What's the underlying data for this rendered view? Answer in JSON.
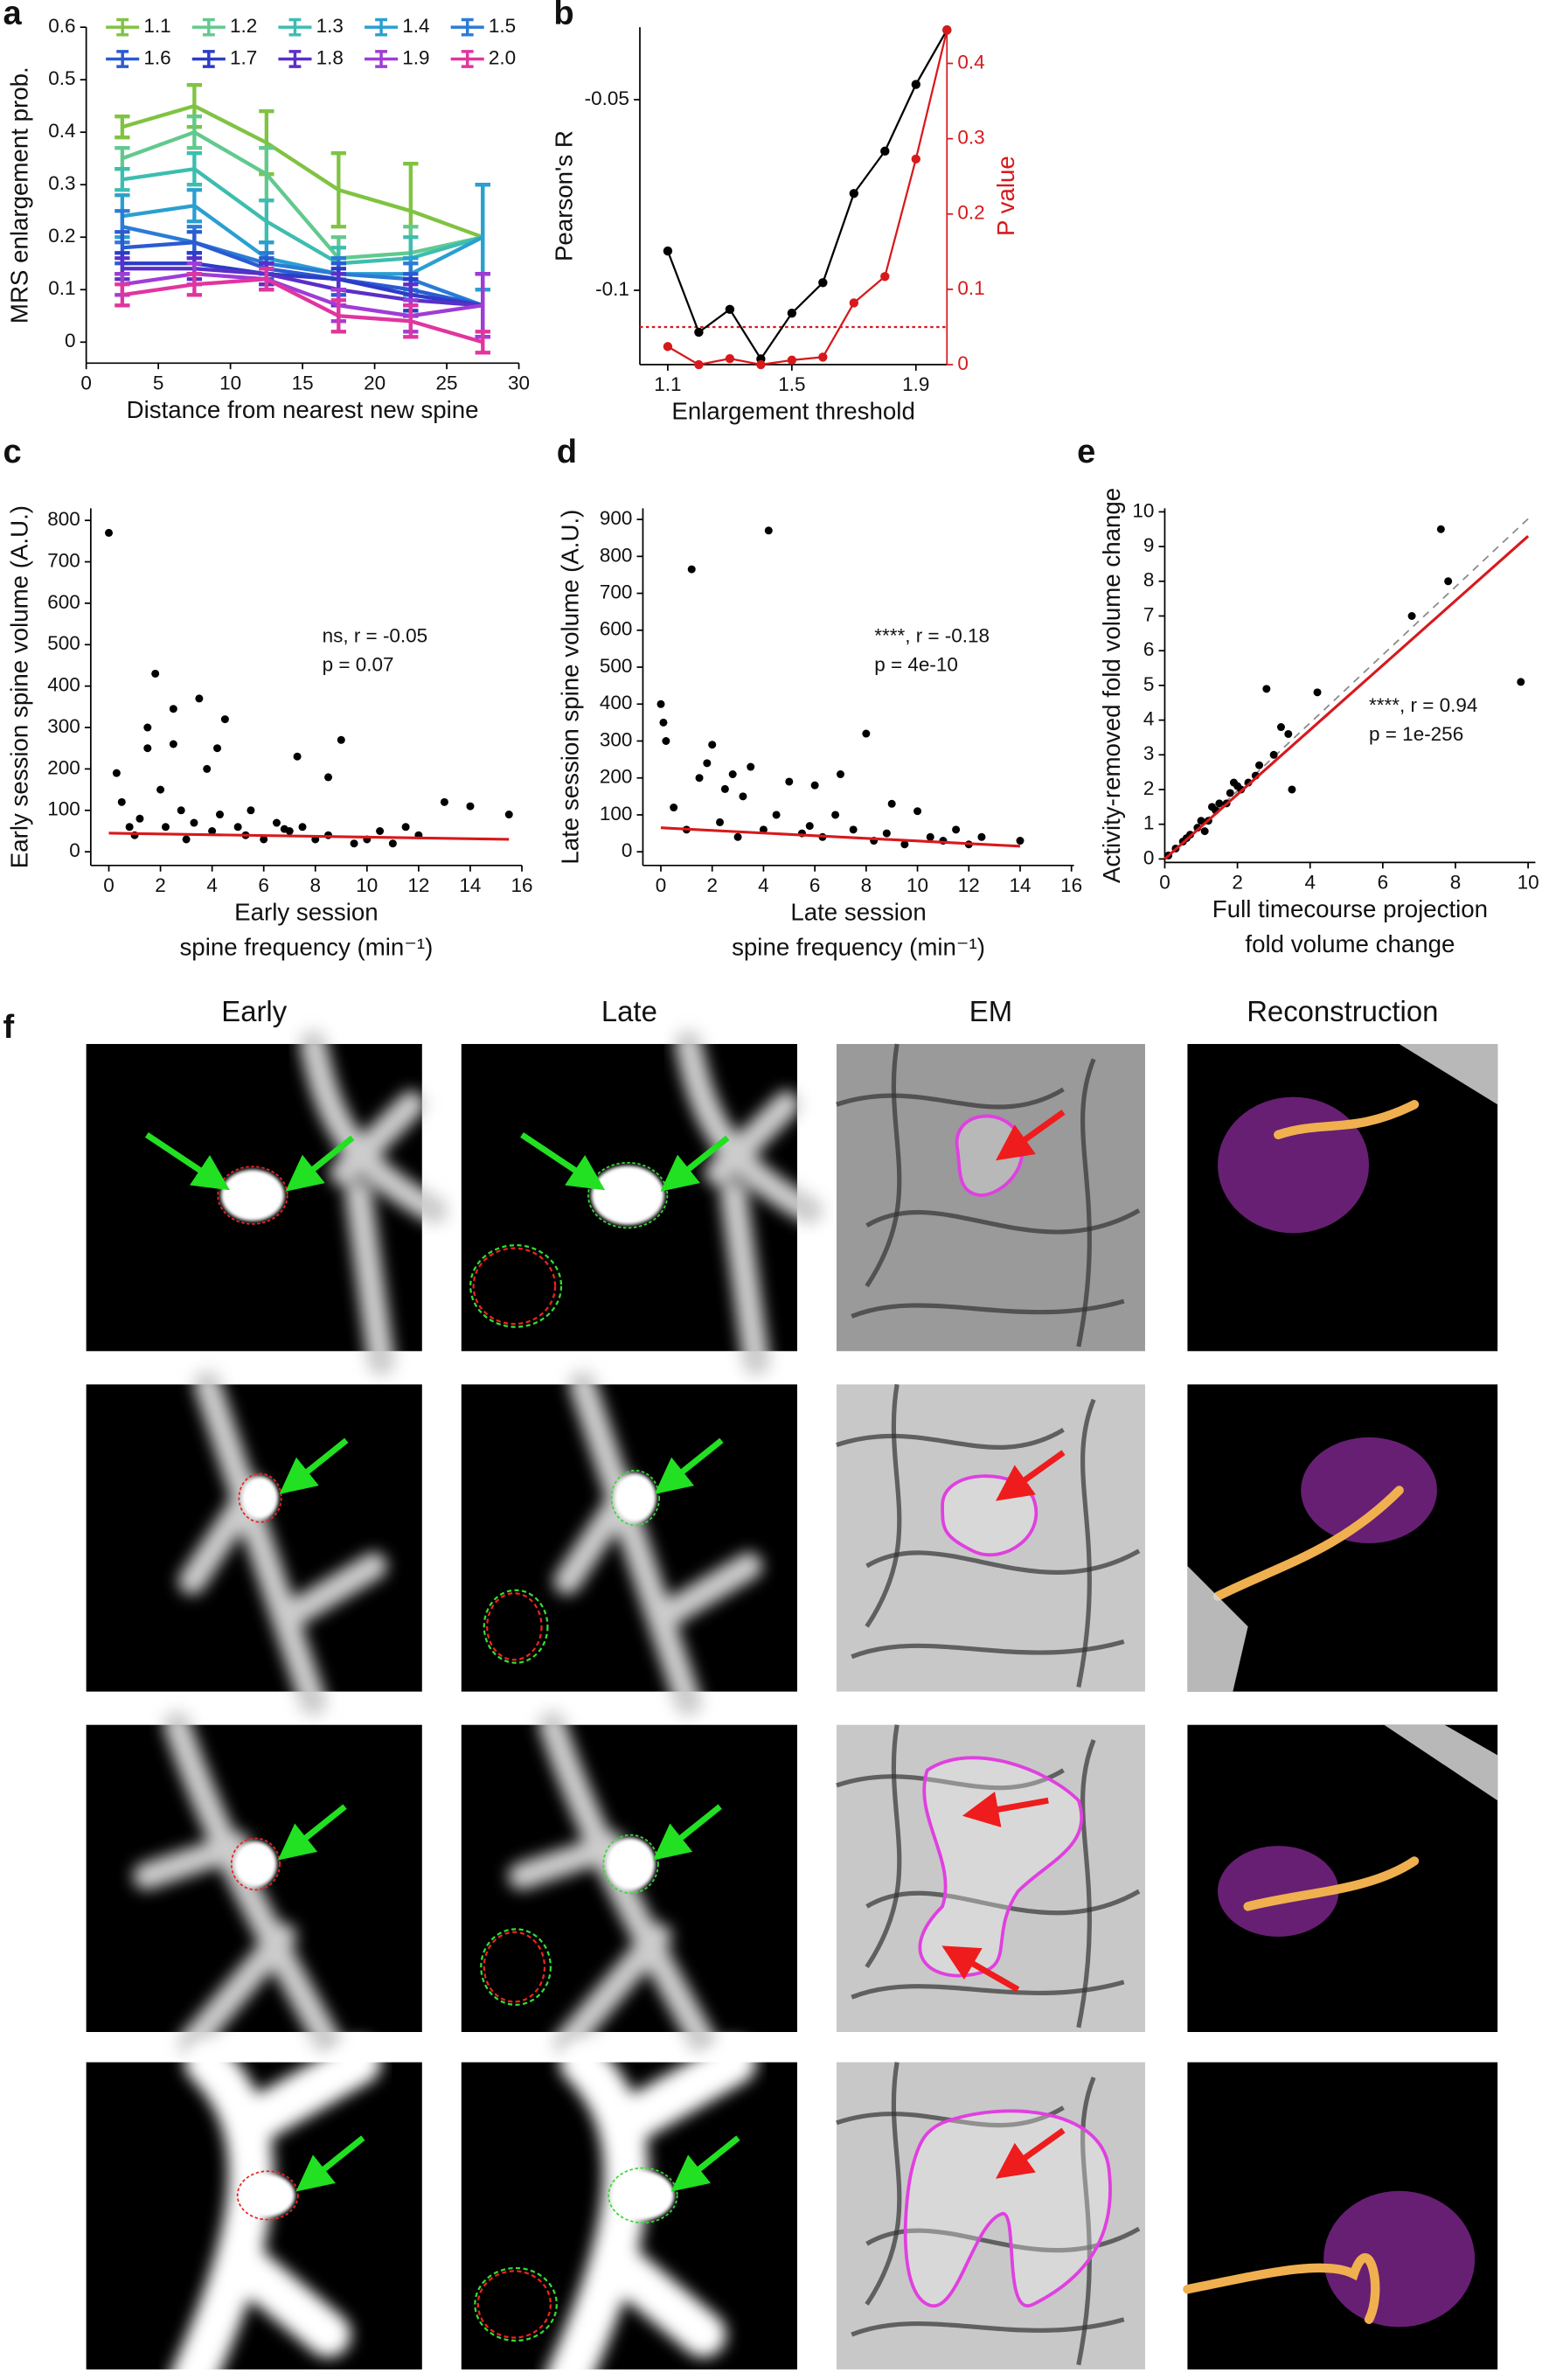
{
  "chart_data": [
    {
      "type": "line",
      "panel": "a",
      "xlabel": "Distance from nearest new spine",
      "ylabel": "MRS enlargement prob.",
      "x": [
        2.5,
        7.5,
        12.5,
        17.5,
        22.5,
        27.5
      ],
      "xlim": [
        0,
        30
      ],
      "xticks": [
        0,
        5,
        10,
        15,
        20,
        25,
        30
      ],
      "ylim": [
        -0.04,
        0.6
      ],
      "yticks": [
        0,
        0.1,
        0.2,
        0.3,
        0.4,
        0.5,
        0.6
      ],
      "series": [
        {
          "name": "1.1",
          "color": "#80c342",
          "values": [
            0.41,
            0.45,
            0.38,
            0.29,
            0.25,
            0.2
          ],
          "errors": [
            0.02,
            0.04,
            0.06,
            0.07,
            0.09,
            0.1
          ]
        },
        {
          "name": "1.2",
          "color": "#62c98e",
          "values": [
            0.35,
            0.4,
            0.32,
            0.16,
            0.17,
            0.2
          ],
          "errors": [
            0.02,
            0.03,
            0.05,
            0.04,
            0.05,
            0.1
          ]
        },
        {
          "name": "1.3",
          "color": "#3dbdb0",
          "values": [
            0.31,
            0.33,
            0.23,
            0.15,
            0.16,
            0.2
          ],
          "errors": [
            0.02,
            0.03,
            0.04,
            0.03,
            0.04,
            0.1
          ]
        },
        {
          "name": "1.4",
          "color": "#2a9fd0",
          "values": [
            0.24,
            0.26,
            0.16,
            0.13,
            0.13,
            0.2
          ],
          "errors": [
            0.04,
            0.03,
            0.03,
            0.03,
            0.03,
            0.1
          ]
        },
        {
          "name": "1.5",
          "color": "#2b7bd6",
          "values": [
            0.22,
            0.19,
            0.15,
            0.13,
            0.12,
            0.07
          ],
          "errors": [
            0.03,
            0.03,
            0.02,
            0.03,
            0.03,
            0.06
          ]
        },
        {
          "name": "1.6",
          "color": "#2a5bd0",
          "values": [
            0.18,
            0.19,
            0.14,
            0.12,
            0.1,
            0.07
          ],
          "errors": [
            0.03,
            0.02,
            0.02,
            0.03,
            0.03,
            0.06
          ]
        },
        {
          "name": "1.7",
          "color": "#2c3cc8",
          "values": [
            0.15,
            0.15,
            0.13,
            0.12,
            0.09,
            0.07
          ],
          "errors": [
            0.02,
            0.02,
            0.02,
            0.02,
            0.03,
            0.06
          ]
        },
        {
          "name": "1.8",
          "color": "#5a2fc8",
          "values": [
            0.14,
            0.14,
            0.13,
            0.1,
            0.08,
            0.07
          ],
          "errors": [
            0.02,
            0.02,
            0.02,
            0.03,
            0.03,
            0.06
          ]
        },
        {
          "name": "1.9",
          "color": "#a03cd6",
          "values": [
            0.11,
            0.13,
            0.12,
            0.07,
            0.05,
            0.07
          ],
          "errors": [
            0.02,
            0.02,
            0.02,
            0.03,
            0.03,
            0.06
          ]
        },
        {
          "name": "2.0",
          "color": "#e0359f",
          "values": [
            0.09,
            0.11,
            0.12,
            0.05,
            0.04,
            0.0
          ],
          "errors": [
            0.02,
            0.02,
            0.02,
            0.03,
            0.03,
            0.02
          ]
        }
      ]
    },
    {
      "type": "line",
      "panel": "b",
      "xlabel": "Enlargement threshold",
      "ylabel": "Pearson's R",
      "y2label": "P value",
      "x": [
        1.1,
        1.2,
        1.3,
        1.4,
        1.5,
        1.6,
        1.7,
        1.8,
        1.9,
        2.0
      ],
      "xlim": [
        1.01,
        2.0
      ],
      "xticks": [
        1.1,
        1.5,
        1.9
      ],
      "ylim": [
        -0.1195,
        -0.031
      ],
      "yticks": [
        -0.1,
        -0.05
      ],
      "y2lim": [
        0,
        0.448
      ],
      "y2ticks": [
        0,
        0.1,
        0.2,
        0.3,
        0.4
      ],
      "y2color": "#d7191c",
      "hline_y2": 0.05,
      "series": [
        {
          "name": "Pearson's R",
          "color": "#000000",
          "values": [
            -0.0897,
            -0.111,
            -0.105,
            -0.118,
            -0.106,
            -0.098,
            -0.0746,
            -0.0635,
            -0.046,
            -0.0317
          ]
        },
        {
          "name": "P value",
          "color": "#d7191c",
          "axis": "y2",
          "values": [
            0.024,
            0.0,
            0.008,
            0.0,
            0.006,
            0.01,
            0.082,
            0.117,
            0.273,
            0.444
          ]
        }
      ]
    },
    {
      "type": "scatter",
      "panel": "c",
      "xlabel": [
        "Early session",
        "spine frequency (min⁻¹)"
      ],
      "ylabel": "Early session spine volume (A.U.)",
      "xlim": [
        -0.7,
        16
      ],
      "xticks": [
        0,
        2,
        4,
        6,
        8,
        10,
        12,
        14,
        16
      ],
      "ylim": [
        -33,
        829
      ],
      "yticks": [
        0,
        100,
        200,
        300,
        400,
        500,
        600,
        700,
        800
      ],
      "annotation": [
        "ns, r = -0.05",
        "p = 0.07"
      ],
      "color": "#000000",
      "x": [
        0,
        0.3,
        0.5,
        0.8,
        1,
        1.2,
        1.5,
        1.8,
        2,
        2.2,
        2.5,
        2.8,
        3,
        3.3,
        3.5,
        3.8,
        4,
        4.3,
        4.5,
        5,
        5.3,
        5.5,
        6,
        6.5,
        7,
        7.3,
        7.5,
        8,
        8.5,
        9,
        9.5,
        10,
        10.5,
        11,
        11.5,
        12,
        13,
        14,
        15.5,
        1.5,
        2.5,
        4.2,
        8.5,
        6.8
      ],
      "values": [
        770,
        190,
        120,
        60,
        40,
        80,
        300,
        430,
        150,
        60,
        345,
        100,
        30,
        70,
        370,
        200,
        50,
        90,
        320,
        60,
        40,
        100,
        30,
        70,
        50,
        230,
        60,
        30,
        40,
        270,
        20,
        30,
        50,
        20,
        60,
        40,
        120,
        110,
        90,
        250,
        260,
        250,
        180,
        55
      ],
      "fit": {
        "color": "#d7191c",
        "x": [
          0,
          15.5
        ],
        "y": [
          45,
          30
        ]
      }
    },
    {
      "type": "scatter",
      "panel": "d",
      "xlabel": [
        "Late session",
        "spine frequency (min⁻¹)"
      ],
      "ylabel": "Late session spine volume (A.U.)",
      "xlim": [
        -0.7,
        16.1
      ],
      "xticks": [
        0,
        2,
        4,
        6,
        8,
        10,
        12,
        14,
        16
      ],
      "ylim": [
        -37,
        930
      ],
      "yticks": [
        0,
        100,
        200,
        300,
        400,
        500,
        600,
        700,
        800,
        900
      ],
      "annotation": [
        "****, r = -0.18",
        "p = 4e-10"
      ],
      "color": "#000000",
      "x": [
        0,
        0.2,
        0.5,
        1,
        1.2,
        1.5,
        2,
        2.3,
        2.8,
        3,
        3.5,
        4,
        4.2,
        4.5,
        5,
        5.5,
        6,
        6.3,
        7,
        7.5,
        8,
        8.3,
        8.8,
        9,
        9.5,
        10,
        10.5,
        11,
        11.5,
        12,
        12.5,
        14,
        0.1,
        3.2,
        5.8,
        1.8,
        2.5,
        6.8
      ],
      "values": [
        400,
        300,
        120,
        60,
        765,
        200,
        290,
        80,
        210,
        40,
        230,
        60,
        870,
        100,
        190,
        50,
        180,
        40,
        210,
        60,
        320,
        30,
        50,
        130,
        20,
        110,
        40,
        30,
        60,
        20,
        40,
        30,
        350,
        150,
        70,
        240,
        170,
        100
      ],
      "fit": {
        "color": "#d7191c",
        "x": [
          0,
          14
        ],
        "y": [
          65,
          15
        ]
      }
    },
    {
      "type": "scatter",
      "panel": "e",
      "xlabel": [
        "Full timecourse projection",
        "fold volume change"
      ],
      "ylabel": "Activity-removed fold volume change",
      "xlim": [
        0,
        10.2
      ],
      "xticks": [
        0,
        2,
        4,
        6,
        8,
        10
      ],
      "ylim": [
        -0.1,
        10.1
      ],
      "yticks": [
        0,
        1,
        2,
        3,
        4,
        5,
        6,
        7,
        8,
        9,
        10
      ],
      "annotation": [
        "****, r = 0.94",
        "p = 1e-256"
      ],
      "color": "#000000",
      "x": [
        0.1,
        0.3,
        0.5,
        0.7,
        0.9,
        1,
        1.2,
        1.4,
        1.5,
        1.7,
        1.8,
        2,
        2.1,
        2.3,
        2.5,
        2.8,
        3,
        3.2,
        3.5,
        4.2,
        6.8,
        7.6,
        7.8,
        9.8,
        3.4,
        1.1,
        0.6,
        1.9,
        2.6,
        1.3
      ],
      "values": [
        0.1,
        0.3,
        0.5,
        0.7,
        0.9,
        1.1,
        1.1,
        1.4,
        1.6,
        1.6,
        1.9,
        2.1,
        2.0,
        2.2,
        2.4,
        4.9,
        3.0,
        3.8,
        2.0,
        4.8,
        7.0,
        9.5,
        8.0,
        5.1,
        3.6,
        0.8,
        0.6,
        2.2,
        2.7,
        1.5
      ],
      "fit": {
        "color": "#d7191c",
        "x": [
          0,
          10
        ],
        "y": [
          0,
          9.3
        ]
      },
      "identity": {
        "color": "#888888",
        "x": [
          0,
          10
        ],
        "y": [
          0,
          9.8
        ]
      }
    }
  ],
  "panel_f": {
    "panel": "f",
    "columns": [
      "Early",
      "Late",
      "EM",
      "Reconstruction"
    ]
  }
}
